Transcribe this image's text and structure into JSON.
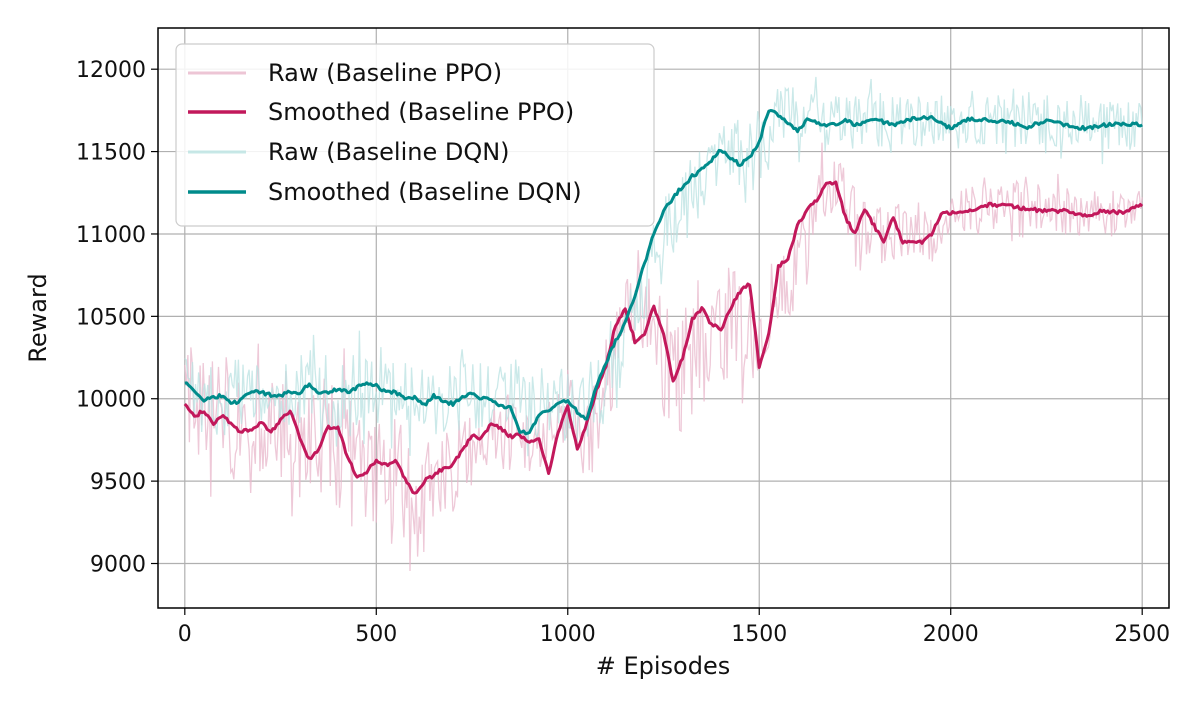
{
  "chart_data": {
    "type": "line",
    "title": "",
    "xlabel": "# Episodes",
    "ylabel": "Reward",
    "xlim": [
      -70,
      2570
    ],
    "ylim": [
      8730,
      12250
    ],
    "xticks": [
      0,
      500,
      1000,
      1500,
      2000,
      2500
    ],
    "xtick_labels": [
      "0",
      "500",
      "1000",
      "1500",
      "2000",
      "2500"
    ],
    "yticks": [
      9000,
      9500,
      10000,
      10500,
      11000,
      11500,
      12000
    ],
    "ytick_labels": [
      "9000",
      "9500",
      "10000",
      "10500",
      "11000",
      "11500",
      "12000"
    ],
    "grid": true,
    "legend_position": "top-left",
    "series": [
      {
        "name": "Raw (Baseline PPO)",
        "kind": "raw",
        "color": "#e8b7cb",
        "x": [
          0,
          50,
          100,
          150,
          200,
          250,
          300,
          350,
          400,
          450,
          500,
          550,
          600,
          650,
          700,
          750,
          800,
          850,
          900,
          950,
          1000,
          1050,
          1100,
          1150,
          1200,
          1250,
          1300,
          1350,
          1400,
          1450,
          1500,
          1550,
          1600,
          1650,
          1700,
          1750,
          1800,
          1850,
          1900,
          1950,
          2000,
          2050,
          2100,
          2150,
          2200,
          2250,
          2300,
          2350,
          2400,
          2450,
          2500
        ],
        "center": [
          9960,
          9900,
          9850,
          9800,
          9850,
          9780,
          9650,
          9800,
          9700,
          9550,
          9600,
          9550,
          9420,
          9500,
          9580,
          9700,
          9800,
          9780,
          9740,
          9750,
          9950,
          9700,
          10100,
          10450,
          10500,
          10250,
          10150,
          10500,
          10400,
          10550,
          10300,
          10700,
          10800,
          11200,
          11300,
          11100,
          11000,
          11000,
          11050,
          11000,
          11120,
          11150,
          11150,
          11180,
          11170,
          11150,
          11140,
          11130,
          11140,
          11150,
          11180
        ],
        "spread": [
          700,
          650,
          600,
          550,
          550,
          550,
          600,
          650,
          700,
          700,
          650,
          600,
          550,
          500,
          450,
          420,
          400,
          380,
          360,
          380,
          420,
          450,
          500,
          560,
          600,
          600,
          600,
          600,
          600,
          600,
          580,
          520,
          420,
          380,
          350,
          320,
          300,
          290,
          280,
          270,
          260,
          255,
          250,
          250,
          245,
          240,
          240,
          240,
          240,
          240,
          240
        ]
      },
      {
        "name": "Smoothed (Baseline PPO)",
        "kind": "smoothed",
        "color": "#c2185b",
        "x": [
          0,
          25,
          50,
          75,
          100,
          125,
          150,
          175,
          200,
          225,
          250,
          275,
          300,
          325,
          350,
          375,
          400,
          425,
          450,
          475,
          500,
          525,
          550,
          575,
          600,
          625,
          650,
          675,
          700,
          725,
          750,
          775,
          800,
          825,
          850,
          875,
          900,
          925,
          950,
          975,
          1000,
          1025,
          1050,
          1075,
          1100,
          1125,
          1150,
          1175,
          1200,
          1225,
          1250,
          1275,
          1300,
          1325,
          1350,
          1375,
          1400,
          1425,
          1450,
          1475,
          1500,
          1525,
          1550,
          1575,
          1600,
          1625,
          1650,
          1675,
          1700,
          1725,
          1750,
          1775,
          1800,
          1825,
          1850,
          1875,
          1900,
          1925,
          1950,
          1975,
          2000,
          2050,
          2100,
          2150,
          2200,
          2250,
          2300,
          2350,
          2400,
          2450,
          2500
        ],
        "y": [
          9960,
          9890,
          9930,
          9850,
          9900,
          9830,
          9800,
          9820,
          9850,
          9800,
          9870,
          9930,
          9770,
          9630,
          9700,
          9830,
          9820,
          9650,
          9520,
          9560,
          9620,
          9600,
          9620,
          9520,
          9420,
          9500,
          9530,
          9580,
          9600,
          9690,
          9780,
          9760,
          9850,
          9820,
          9770,
          9780,
          9730,
          9760,
          9550,
          9800,
          9950,
          9700,
          9850,
          10050,
          10200,
          10450,
          10550,
          10350,
          10400,
          10560,
          10400,
          10100,
          10250,
          10480,
          10550,
          10450,
          10420,
          10550,
          10650,
          10700,
          10200,
          10400,
          10800,
          10850,
          11050,
          11150,
          11200,
          11300,
          11320,
          11100,
          11000,
          11150,
          11050,
          10950,
          11100,
          10950,
          10950,
          10950,
          11000,
          11120,
          11130,
          11140,
          11180,
          11170,
          11150,
          11140,
          11140,
          11110,
          11140,
          11130,
          11180
        ]
      },
      {
        "name": "Raw (Baseline DQN)",
        "kind": "raw",
        "color": "#b9e2e1",
        "x": [
          0,
          50,
          100,
          150,
          200,
          250,
          300,
          350,
          400,
          450,
          500,
          550,
          600,
          650,
          700,
          750,
          800,
          850,
          900,
          950,
          1000,
          1050,
          1100,
          1150,
          1200,
          1250,
          1300,
          1350,
          1400,
          1450,
          1500,
          1550,
          1600,
          1650,
          1700,
          1750,
          1800,
          1850,
          1900,
          1950,
          2000,
          2050,
          2100,
          2150,
          2200,
          2250,
          2300,
          2350,
          2400,
          2450,
          2500
        ],
        "center": [
          10080,
          10010,
          10000,
          10020,
          10040,
          10030,
          10040,
          10050,
          10030,
          10070,
          10040,
          10010,
          9990,
          10000,
          9990,
          10000,
          9990,
          9990,
          9960,
          9980,
          9970,
          9950,
          10050,
          10350,
          10700,
          10950,
          11150,
          11300,
          11420,
          11500,
          11550,
          11700,
          11690,
          11680,
          11690,
          11700,
          11690,
          11690,
          11700,
          11680,
          11660,
          11680,
          11690,
          11680,
          11670,
          11700,
          11670,
          11660,
          11650,
          11660,
          11660
        ],
        "spread": [
          380,
          380,
          380,
          380,
          380,
          380,
          380,
          380,
          380,
          380,
          380,
          380,
          380,
          380,
          380,
          380,
          380,
          380,
          380,
          380,
          380,
          380,
          400,
          420,
          450,
          450,
          450,
          420,
          400,
          400,
          400,
          380,
          350,
          330,
          320,
          300,
          290,
          280,
          270,
          260,
          250,
          250,
          250,
          250,
          250,
          250,
          250,
          250,
          250,
          250,
          250
        ]
      },
      {
        "name": "Smoothed (Baseline DQN)",
        "kind": "smoothed",
        "color": "#008b8b",
        "x": [
          0,
          25,
          50,
          75,
          100,
          125,
          150,
          175,
          200,
          225,
          250,
          275,
          300,
          325,
          350,
          375,
          400,
          425,
          450,
          475,
          500,
          525,
          550,
          575,
          600,
          625,
          650,
          675,
          700,
          725,
          750,
          775,
          800,
          825,
          850,
          875,
          900,
          925,
          950,
          975,
          1000,
          1025,
          1050,
          1075,
          1100,
          1125,
          1150,
          1175,
          1200,
          1225,
          1250,
          1275,
          1300,
          1325,
          1350,
          1375,
          1400,
          1425,
          1450,
          1475,
          1500,
          1525,
          1550,
          1575,
          1600,
          1625,
          1650,
          1675,
          1700,
          1725,
          1750,
          1800,
          1850,
          1900,
          1950,
          2000,
          2050,
          2100,
          2150,
          2200,
          2250,
          2300,
          2350,
          2400,
          2450,
          2500
        ],
        "y": [
          10100,
          10040,
          9990,
          10010,
          10020,
          9970,
          10000,
          10050,
          10040,
          10020,
          10020,
          10040,
          10030,
          10090,
          10030,
          10040,
          10060,
          10040,
          10070,
          10090,
          10080,
          10040,
          10040,
          10000,
          10010,
          9960,
          10020,
          9980,
          9970,
          10010,
          10030,
          10000,
          10000,
          9950,
          9950,
          9800,
          9790,
          9900,
          9930,
          9980,
          9990,
          9920,
          9870,
          10080,
          10220,
          10350,
          10460,
          10620,
          10820,
          11000,
          11140,
          11220,
          11290,
          11350,
          11390,
          11450,
          11510,
          11460,
          11420,
          11460,
          11560,
          11750,
          11720,
          11680,
          11620,
          11700,
          11680,
          11650,
          11670,
          11690,
          11660,
          11700,
          11660,
          11700,
          11710,
          11640,
          11700,
          11690,
          11680,
          11650,
          11690,
          11660,
          11640,
          11660,
          11670,
          11660
        ]
      }
    ]
  }
}
